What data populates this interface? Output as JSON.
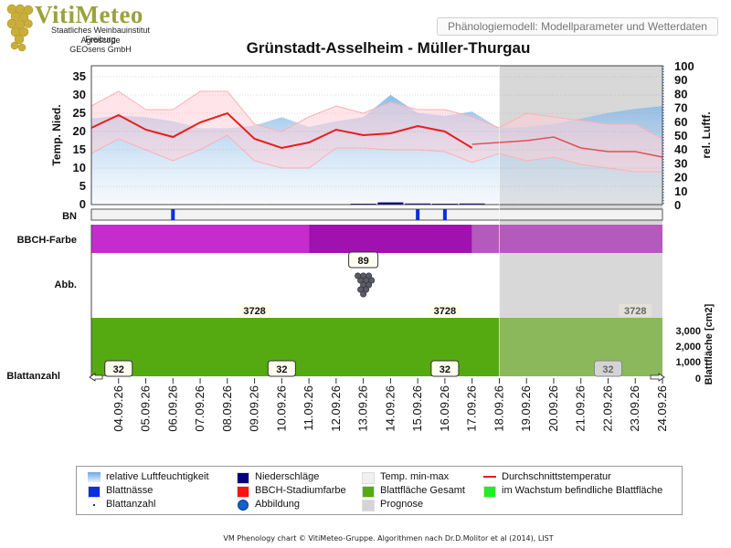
{
  "header": {
    "logo_name": "VitiMeteo",
    "logo_lines": [
      "Staatliches Weinbauinstitut Freiburg",
      "Agroscope",
      "GEOsens GmbH"
    ],
    "model_tab": "Phänologiemodell: Modellparameter und Wetterdaten"
  },
  "chart_data": {
    "type": "line",
    "title": "Grünstadt-Asselheim - Müller-Thurgau",
    "dates": [
      "04.09.26",
      "05.09.26",
      "06.09.26",
      "07.09.26",
      "08.09.26",
      "09.09.26",
      "10.09.26",
      "11.09.26",
      "12.09.26",
      "13.09.26",
      "14.09.26",
      "15.09.26",
      "16.09.26",
      "17.09.26",
      "18.09.26",
      "19.09.26",
      "20.09.26",
      "21.09.26",
      "22.09.26",
      "23.09.26",
      "24.09.26"
    ],
    "forecast_start": "18.09.26",
    "left_axis": {
      "label": "Temp. Nied.",
      "range": [
        0,
        38
      ],
      "ticks": [
        0,
        5,
        10,
        15,
        20,
        25,
        30,
        35
      ]
    },
    "right_axis": {
      "label": "rel. Luftf.",
      "range": [
        0,
        100
      ],
      "ticks": [
        0,
        10,
        20,
        30,
        40,
        50,
        60,
        70,
        80,
        90,
        100
      ]
    },
    "leaf_area_axis": {
      "label": "Blattfläche [cm2]",
      "ticks": [
        "0",
        "1,000",
        "2,000",
        "3,000"
      ]
    },
    "series": [
      {
        "name": "Durchschnittstemperatur",
        "color": "#e81c1c",
        "x": [
          "03.09.26",
          "04.09.26",
          "05.09.26",
          "06.09.26",
          "07.09.26",
          "08.09.26",
          "09.09.26",
          "10.09.26",
          "11.09.26",
          "12.09.26",
          "13.09.26",
          "14.09.26",
          "15.09.26",
          "16.09.26",
          "17.09.26",
          "17.09.26",
          "18.09.26",
          "19.09.26",
          "20.09.26",
          "21.09.26",
          "22.09.26",
          "23.09.26",
          "24.09.26"
        ],
        "values": [
          21,
          24.5,
          20.5,
          18.5,
          22.5,
          25,
          18,
          15.5,
          17,
          20.5,
          19,
          19.5,
          21.5,
          20,
          15.5,
          16.5,
          17,
          17.5,
          18.5,
          15.5,
          14.5,
          14.5,
          13
        ]
      },
      {
        "name": "Temp. max",
        "color": "#ffb0b0",
        "x": [
          "03.09.26",
          "04.09.26",
          "05.09.26",
          "06.09.26",
          "07.09.26",
          "08.09.26",
          "09.09.26",
          "10.09.26",
          "11.09.26",
          "12.09.26",
          "13.09.26",
          "14.09.26",
          "15.09.26",
          "16.09.26",
          "17.09.26",
          "18.09.26",
          "19.09.26",
          "20.09.26",
          "21.09.26",
          "22.09.26",
          "23.09.26",
          "24.09.26"
        ],
        "values": [
          27,
          31,
          26,
          26,
          31,
          31,
          22,
          20,
          24,
          27,
          25,
          28,
          26,
          26,
          24,
          21,
          25,
          24,
          23,
          22,
          22,
          18
        ]
      },
      {
        "name": "Temp. min",
        "color": "#ffb0b0",
        "x": [
          "03.09.26",
          "04.09.26",
          "05.09.26",
          "06.09.26",
          "07.09.26",
          "08.09.26",
          "09.09.26",
          "10.09.26",
          "11.09.26",
          "12.09.26",
          "13.09.26",
          "14.09.26",
          "15.09.26",
          "16.09.26",
          "17.09.26",
          "18.09.26",
          "19.09.26",
          "20.09.26",
          "21.09.26",
          "22.09.26",
          "23.09.26",
          "24.09.26"
        ],
        "values": [
          14,
          18,
          15,
          12,
          15,
          19,
          12,
          10,
          10,
          15.5,
          15.5,
          15,
          15,
          14.5,
          11.5,
          14,
          12,
          13,
          11,
          10,
          9,
          9
        ]
      },
      {
        "name": "relative Luftfeuchtigkeit",
        "color": "#8fbde8",
        "x": [
          "03.09.26",
          "04.09.26",
          "05.09.26",
          "06.09.26",
          "07.09.26",
          "08.09.26",
          "09.09.26",
          "10.09.26",
          "11.09.26",
          "12.09.26",
          "13.09.26",
          "14.09.26",
          "15.09.26",
          "16.09.26",
          "17.09.26",
          "18.09.26",
          "19.09.26",
          "20.09.26",
          "21.09.26",
          "22.09.26",
          "23.09.26",
          "24.09.26"
        ],
        "values": [
          62,
          64,
          63,
          60,
          55,
          55,
          57,
          63,
          56,
          60,
          63,
          79,
          66,
          64,
          67,
          55,
          56,
          58,
          62,
          66,
          69,
          71
        ]
      }
    ],
    "precipitation": [
      {
        "x": "13.09.26",
        "value": 0.2
      },
      {
        "x": "14.09.26",
        "value": 0.6
      },
      {
        "x": "15.09.26",
        "value": 0.3
      },
      {
        "x": "16.09.26",
        "value": 0.2
      },
      {
        "x": "17.09.26",
        "value": 0.3
      }
    ],
    "leaf_wetness": [
      "06.09.26",
      "15.09.26",
      "16.09.26"
    ],
    "rows": {
      "bn_label": "BN",
      "bbch_label": "BBCH-Farbe",
      "abb_label": "Abb.",
      "blattanzahl_label": "Blattanzahl"
    },
    "bbch_segments": [
      {
        "from": "03.09.26",
        "to": "11.09.26",
        "color": "#c42ccd"
      },
      {
        "from": "11.09.26",
        "to": "17.09.26",
        "color": "#a011b0"
      },
      {
        "from": "17.09.26",
        "to": "24.09.26",
        "color": "#b45abd"
      }
    ],
    "abbildung": {
      "x": "13.09.26",
      "label": "89"
    },
    "leaf_area_labels": [
      {
        "x": "09.09.26",
        "label": "3728"
      },
      {
        "x": "16.09.26",
        "label": "3728"
      },
      {
        "x": "23.09.26",
        "label": "3728"
      }
    ],
    "leaf_count_labels": [
      {
        "x": "04.09.26",
        "label": "32"
      },
      {
        "x": "10.09.26",
        "label": "32"
      },
      {
        "x": "16.09.26",
        "label": "32"
      },
      {
        "x": "22.09.26",
        "label": "32"
      }
    ],
    "legend": [
      {
        "label": "relative Luftfeuchtigkeit",
        "symbol": "gradient",
        "color": "#8fbde8"
      },
      {
        "label": "Niederschläge",
        "symbol": "box",
        "color": "#00007a"
      },
      {
        "label": "Temp. min-max",
        "symbol": "box",
        "color": "#f0f0f0"
      },
      {
        "label": "Durchschnittstemperatur",
        "symbol": "line",
        "color": "#e81c1c"
      },
      {
        "label": "Blattnässe",
        "symbol": "box",
        "color": "#0a2ee0"
      },
      {
        "label": "BBCH-Stadiumfarbe",
        "symbol": "box",
        "color": "#ff1010"
      },
      {
        "label": "Blattfläche Gesamt",
        "symbol": "box",
        "color": "#55aa11"
      },
      {
        "label": "im Wachstum befindliche Blattfläche",
        "symbol": "box",
        "color": "#22ee22"
      },
      {
        "label": "Blattanzahl",
        "symbol": "dot",
        "color": "#333333"
      },
      {
        "label": "Abbildung",
        "symbol": "circle",
        "color": "#1860c8"
      },
      {
        "label": "Prognose",
        "symbol": "box",
        "color": "#d4d4d4"
      }
    ]
  },
  "footer": "VM Phenology chart © VitiMeteo-Gruppe. Algorithmen nach Dr.D.Molitor et al (2014), LIST"
}
